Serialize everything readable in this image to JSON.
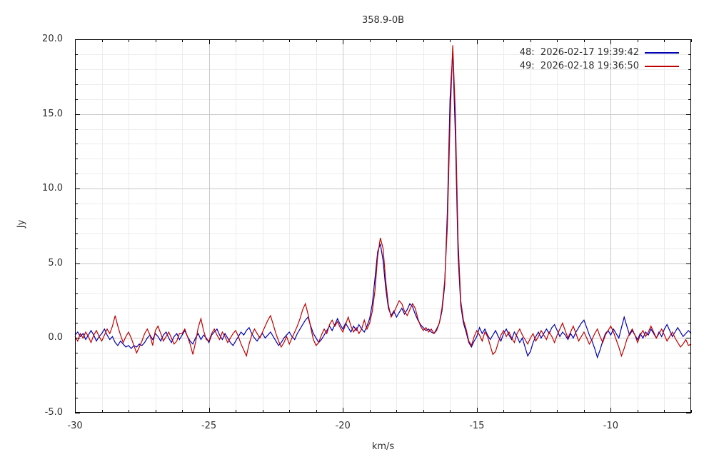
{
  "title": "358.9-0B",
  "axes": {
    "xlabel": "km/s",
    "ylabel": "Jy",
    "xlim": [
      -30,
      -7
    ],
    "ylim": [
      -5,
      20
    ],
    "xtick_values": [
      -30,
      -25,
      -20,
      -15,
      -10
    ],
    "xtick_labels": [
      "-30",
      "-25",
      "-20",
      "-15",
      "-10"
    ],
    "ytick_values": [
      20,
      15,
      10,
      5,
      0,
      -5
    ],
    "ytick_labels": [
      "20.0",
      "15.0",
      "10.0",
      "5.0",
      "0.0",
      "-5.0"
    ],
    "minor_step_x": 1,
    "minor_step_y": 1,
    "grid_minor_color": "#ececec",
    "grid_major_color": "#c8c8c8",
    "border_color": "#000000"
  },
  "legend": [
    {
      "id": "48",
      "label": "48:  2026-02-17 19:39:42",
      "color": "#0000b0"
    },
    {
      "id": "49",
      "label": "49:  2026-02-18 19:36:50",
      "color": "#c00000"
    }
  ],
  "chart_data": {
    "type": "line",
    "title": "358.9-0B",
    "xlabel": "km/s",
    "ylabel": "Jy",
    "xlim": [
      -30,
      -7
    ],
    "ylim": [
      -5,
      20
    ],
    "grid": true,
    "legend_position": "top-right",
    "x_start": -30.0,
    "x_step": 0.1,
    "n_points": 231,
    "series": [
      {
        "name": "48:  2026-02-17 19:39:42",
        "color": "#0000b0",
        "values": [
          0.2,
          0.4,
          0.1,
          0.3,
          -0.1,
          0.2,
          0.5,
          0.2,
          -0.2,
          0.1,
          0.3,
          0.6,
          0.2,
          -0.1,
          0.1,
          -0.3,
          -0.5,
          -0.2,
          -0.4,
          -0.6,
          -0.5,
          -0.7,
          -0.5,
          -0.6,
          -0.4,
          -0.5,
          -0.3,
          0.0,
          0.2,
          -0.1,
          0.3,
          0.1,
          -0.2,
          0.2,
          0.4,
          0.0,
          -0.3,
          0.1,
          0.3,
          -0.1,
          0.2,
          0.5,
          0.1,
          -0.2,
          -0.4,
          0.0,
          0.3,
          -0.1,
          0.2,
          0.0,
          -0.3,
          0.2,
          0.4,
          0.6,
          0.2,
          -0.1,
          0.3,
          0.0,
          -0.3,
          -0.5,
          -0.2,
          0.1,
          0.4,
          0.2,
          0.5,
          0.7,
          0.3,
          0.0,
          -0.2,
          0.1,
          0.3,
          0.0,
          0.2,
          0.4,
          0.1,
          -0.2,
          -0.5,
          -0.3,
          0.0,
          0.2,
          0.4,
          0.1,
          -0.1,
          0.3,
          0.6,
          0.9,
          1.2,
          1.4,
          0.8,
          0.3,
          0.0,
          -0.3,
          -0.1,
          0.2,
          0.5,
          0.8,
          0.5,
          0.9,
          1.3,
          0.9,
          0.6,
          1.0,
          0.7,
          0.4,
          0.8,
          0.5,
          0.9,
          0.6,
          0.4,
          0.8,
          1.3,
          2.3,
          4.0,
          5.8,
          6.3,
          5.2,
          3.3,
          2.0,
          1.5,
          1.8,
          1.4,
          1.7,
          2.0,
          1.6,
          1.9,
          2.3,
          2.1,
          1.6,
          1.2,
          0.9,
          0.7,
          0.5,
          0.6,
          0.4,
          0.3,
          0.6,
          1.0,
          1.8,
          3.5,
          8.5,
          16.0,
          19.2,
          13.5,
          5.5,
          2.2,
          1.0,
          0.4,
          -0.3,
          -0.6,
          -0.2,
          0.1,
          0.7,
          0.3,
          0.6,
          0.2,
          -0.1,
          0.2,
          0.5,
          0.1,
          -0.2,
          0.3,
          0.6,
          0.2,
          -0.1,
          0.4,
          0.1,
          -0.3,
          0.0,
          -0.6,
          -1.2,
          -0.9,
          -0.3,
          0.1,
          0.4,
          0.0,
          0.3,
          0.6,
          0.3,
          0.7,
          0.9,
          0.5,
          0.1,
          0.4,
          0.2,
          -0.1,
          0.3,
          0.0,
          0.4,
          0.7,
          1.0,
          1.2,
          0.7,
          0.2,
          -0.2,
          -0.7,
          -1.3,
          -0.8,
          -0.2,
          0.3,
          0.5,
          0.2,
          0.6,
          0.3,
          0.0,
          0.7,
          1.4,
          0.8,
          0.2,
          0.5,
          0.2,
          -0.1,
          0.3,
          0.0,
          0.4,
          0.2,
          0.6,
          0.3,
          0.0,
          0.4,
          0.1,
          0.6,
          0.9,
          0.5,
          0.1,
          0.4,
          0.7,
          0.4,
          0.1,
          0.3,
          0.5,
          0.3
        ]
      },
      {
        "name": "49:  2026-02-18 19:36:50",
        "color": "#c00000",
        "values": [
          0.1,
          -0.2,
          0.3,
          0.0,
          0.4,
          0.1,
          -0.3,
          0.2,
          0.5,
          0.1,
          -0.2,
          0.2,
          0.6,
          0.3,
          0.8,
          1.5,
          0.8,
          0.2,
          -0.3,
          0.1,
          0.4,
          0.0,
          -0.5,
          -1.0,
          -0.6,
          -0.2,
          0.3,
          0.6,
          0.2,
          -0.5,
          0.5,
          0.8,
          0.3,
          -0.2,
          0.1,
          0.4,
          0.0,
          -0.4,
          -0.2,
          0.3,
          0.3,
          0.6,
          0.1,
          -0.4,
          -1.1,
          -0.3,
          0.7,
          1.3,
          0.5,
          -0.1,
          -0.2,
          0.3,
          0.6,
          0.2,
          -0.1,
          0.4,
          0.1,
          -0.3,
          0.0,
          0.3,
          0.5,
          0.1,
          -0.4,
          -0.8,
          -1.2,
          -0.4,
          0.2,
          0.6,
          0.3,
          0.0,
          0.4,
          0.8,
          1.2,
          1.5,
          0.9,
          0.3,
          -0.2,
          -0.6,
          -0.3,
          0.1,
          -0.4,
          0.0,
          0.4,
          0.8,
          1.3,
          1.9,
          2.3,
          1.6,
          0.7,
          -0.1,
          -0.5,
          -0.3,
          0.2,
          0.6,
          0.3,
          0.9,
          1.2,
          0.8,
          1.1,
          0.7,
          0.4,
          0.9,
          1.4,
          0.8,
          0.4,
          0.7,
          0.3,
          0.6,
          1.2,
          0.6,
          1.0,
          1.8,
          3.2,
          5.5,
          6.7,
          6.0,
          3.8,
          2.2,
          1.4,
          1.7,
          2.1,
          2.5,
          2.3,
          1.8,
          1.5,
          1.9,
          2.3,
          2.0,
          1.3,
          0.8,
          0.5,
          0.7,
          0.4,
          0.6,
          0.3,
          0.5,
          1.0,
          2.0,
          3.8,
          7.5,
          14.5,
          19.6,
          15.0,
          6.5,
          2.5,
          1.2,
          0.6,
          -0.2,
          -0.5,
          0.1,
          0.5,
          0.2,
          -0.2,
          0.4,
          0.1,
          -0.5,
          -1.1,
          -0.9,
          -0.3,
          0.2,
          0.5,
          0.1,
          0.4,
          0.0,
          -0.3,
          0.3,
          0.6,
          0.2,
          -0.1,
          -0.4,
          0.0,
          0.3,
          -0.2,
          0.1,
          0.5,
          0.2,
          -0.1,
          0.4,
          0.1,
          -0.3,
          0.2,
          0.6,
          1.0,
          0.5,
          0.0,
          0.4,
          0.8,
          0.3,
          -0.2,
          0.1,
          0.4,
          0.0,
          -0.4,
          -0.1,
          0.3,
          0.6,
          0.1,
          -0.3,
          0.2,
          0.5,
          0.8,
          0.4,
          -0.1,
          -0.6,
          -1.2,
          -0.7,
          -0.1,
          0.3,
          0.6,
          0.2,
          -0.3,
          0.2,
          0.5,
          0.1,
          0.4,
          0.8,
          0.4,
          0.0,
          0.3,
          0.6,
          0.2,
          -0.2,
          0.1,
          0.4,
          0.0,
          -0.3,
          -0.6,
          -0.4,
          -0.1,
          -0.5,
          -0.4
        ]
      }
    ]
  }
}
